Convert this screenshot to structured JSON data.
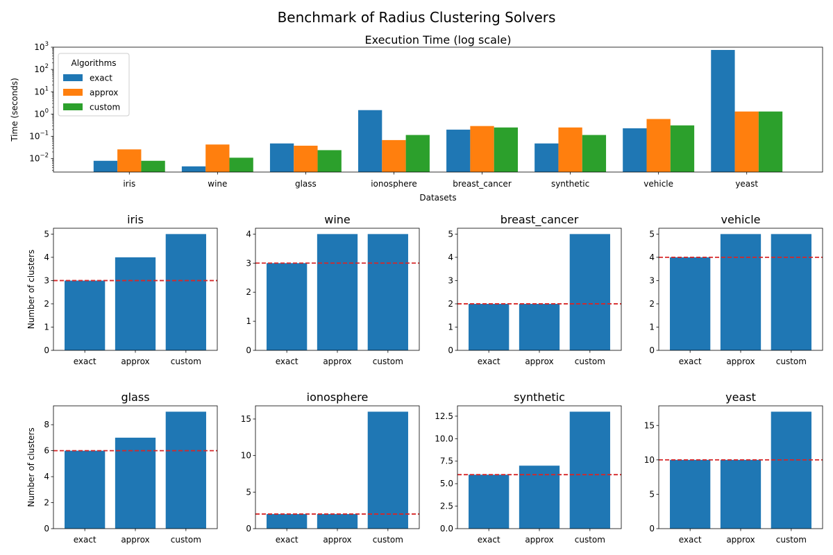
{
  "figure": {
    "suptitle": "Benchmark of Radius Clustering Solvers"
  },
  "colors": {
    "exact": "#1f77b4",
    "approx": "#ff7f0e",
    "custom": "#2ca02c",
    "reference_line": "#d62728"
  },
  "chart_data": [
    {
      "type": "bar",
      "title": "Execution Time (log scale)",
      "xlabel": "Datasets",
      "ylabel": "Time (seconds)",
      "yscale": "log",
      "ylim": [
        0.0025,
        1000
      ],
      "yticks": [
        {
          "value": 0.01,
          "base": "10",
          "exp": "−2"
        },
        {
          "value": 0.1,
          "base": "10",
          "exp": "−1"
        },
        {
          "value": 1,
          "base": "10",
          "exp": "0"
        },
        {
          "value": 10,
          "base": "10",
          "exp": "1"
        },
        {
          "value": 100,
          "base": "10",
          "exp": "2"
        },
        {
          "value": 1000,
          "base": "10",
          "exp": "3"
        }
      ],
      "categories": [
        "iris",
        "wine",
        "glass",
        "ionosphere",
        "breast_cancer",
        "synthetic",
        "vehicle",
        "yeast"
      ],
      "legend": {
        "title": "Algorithms",
        "position": "top-left"
      },
      "series": [
        {
          "name": "exact",
          "values": [
            0.008,
            0.0045,
            0.048,
            1.5,
            0.2,
            0.048,
            0.23,
            750
          ]
        },
        {
          "name": "approx",
          "values": [
            0.026,
            0.043,
            0.038,
            0.068,
            0.29,
            0.25,
            0.6,
            1.3
          ]
        },
        {
          "name": "custom",
          "values": [
            0.008,
            0.011,
            0.024,
            0.115,
            0.25,
            0.115,
            0.31,
            1.3
          ]
        }
      ]
    },
    {
      "type": "bar",
      "title": "iris",
      "ylabel": "Number of clusters",
      "categories": [
        "exact",
        "approx",
        "custom"
      ],
      "values": [
        3,
        4,
        5
      ],
      "reference": 3,
      "ylim": [
        0,
        5.25
      ],
      "yticks": [
        0,
        1,
        2,
        3,
        4,
        5
      ],
      "ytick_labels": [
        "0",
        "1",
        "2",
        "3",
        "4",
        "5"
      ]
    },
    {
      "type": "bar",
      "title": "wine",
      "ylabel": "",
      "categories": [
        "exact",
        "approx",
        "custom"
      ],
      "values": [
        3,
        4,
        4
      ],
      "reference": 3,
      "ylim": [
        0,
        4.2
      ],
      "yticks": [
        0,
        1,
        2,
        3,
        4
      ],
      "ytick_labels": [
        "0",
        "1",
        "2",
        "3",
        "4"
      ]
    },
    {
      "type": "bar",
      "title": "breast_cancer",
      "ylabel": "",
      "categories": [
        "exact",
        "approx",
        "custom"
      ],
      "values": [
        2,
        2,
        5
      ],
      "reference": 2,
      "ylim": [
        0,
        5.25
      ],
      "yticks": [
        0,
        1,
        2,
        3,
        4,
        5
      ],
      "ytick_labels": [
        "0",
        "1",
        "2",
        "3",
        "4",
        "5"
      ]
    },
    {
      "type": "bar",
      "title": "vehicle",
      "ylabel": "",
      "categories": [
        "exact",
        "approx",
        "custom"
      ],
      "values": [
        4,
        5,
        5
      ],
      "reference": 4,
      "ylim": [
        0,
        5.25
      ],
      "yticks": [
        0,
        1,
        2,
        3,
        4,
        5
      ],
      "ytick_labels": [
        "0",
        "1",
        "2",
        "3",
        "4",
        "5"
      ]
    },
    {
      "type": "bar",
      "title": "glass",
      "ylabel": "Number of clusters",
      "categories": [
        "exact",
        "approx",
        "custom"
      ],
      "values": [
        6,
        7,
        9
      ],
      "reference": 6,
      "ylim": [
        0,
        9.45
      ],
      "yticks": [
        0,
        2,
        4,
        6,
        8
      ],
      "ytick_labels": [
        "0",
        "2",
        "4",
        "6",
        "8"
      ]
    },
    {
      "type": "bar",
      "title": "ionosphere",
      "ylabel": "",
      "categories": [
        "exact",
        "approx",
        "custom"
      ],
      "values": [
        2,
        2,
        16
      ],
      "reference": 2,
      "ylim": [
        0,
        16.8
      ],
      "yticks": [
        0,
        5,
        10,
        15
      ],
      "ytick_labels": [
        "0",
        "5",
        "10",
        "15"
      ]
    },
    {
      "type": "bar",
      "title": "synthetic",
      "ylabel": "",
      "categories": [
        "exact",
        "approx",
        "custom"
      ],
      "values": [
        6,
        7,
        13
      ],
      "reference": 6,
      "ylim": [
        0,
        13.65
      ],
      "yticks": [
        0,
        2.5,
        5,
        7.5,
        10,
        12.5
      ],
      "ytick_labels": [
        "0.0",
        "2.5",
        "5.0",
        "7.5",
        "10.0",
        "12.5"
      ]
    },
    {
      "type": "bar",
      "title": "yeast",
      "ylabel": "",
      "categories": [
        "exact",
        "approx",
        "custom"
      ],
      "values": [
        10,
        10,
        17
      ],
      "reference": 10,
      "ylim": [
        0,
        17.85
      ],
      "yticks": [
        0,
        5,
        10,
        15
      ],
      "ytick_labels": [
        "0",
        "5",
        "10",
        "15"
      ]
    }
  ]
}
